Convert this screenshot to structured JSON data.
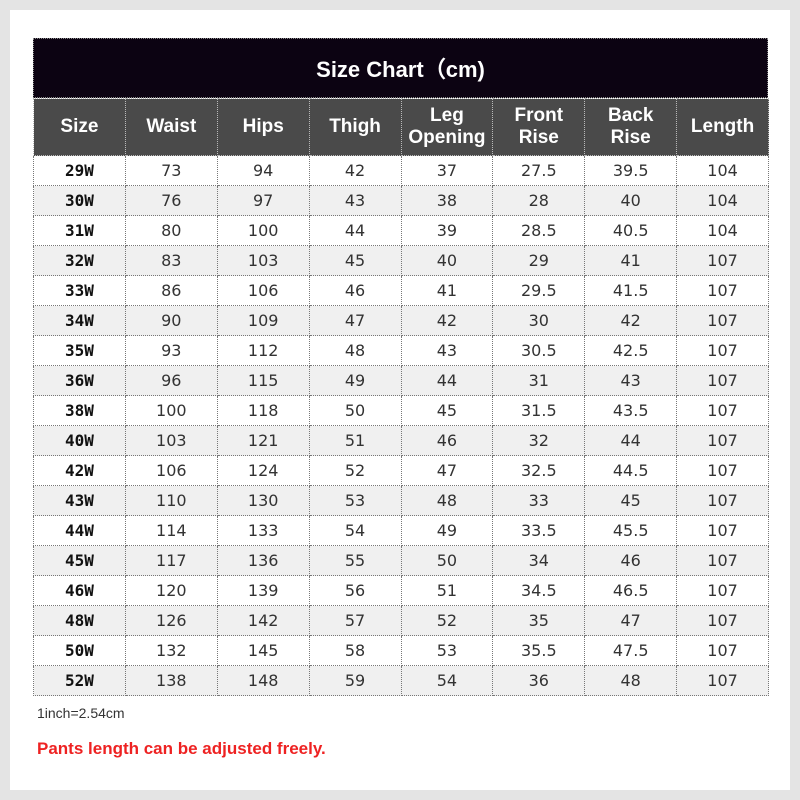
{
  "title": "Size Chart（cm)",
  "headers": [
    "Size",
    "Waist",
    "Hips",
    "Thigh",
    "Leg\nOpening",
    "Front\nRise",
    "Back\nRise",
    "Length"
  ],
  "rows": [
    [
      "29W",
      "73",
      "94",
      "42",
      "37",
      "27.5",
      "39.5",
      "104"
    ],
    [
      "30W",
      "76",
      "97",
      "43",
      "38",
      "28",
      "40",
      "104"
    ],
    [
      "31W",
      "80",
      "100",
      "44",
      "39",
      "28.5",
      "40.5",
      "104"
    ],
    [
      "32W",
      "83",
      "103",
      "45",
      "40",
      "29",
      "41",
      "107"
    ],
    [
      "33W",
      "86",
      "106",
      "46",
      "41",
      "29.5",
      "41.5",
      "107"
    ],
    [
      "34W",
      "90",
      "109",
      "47",
      "42",
      "30",
      "42",
      "107"
    ],
    [
      "35W",
      "93",
      "112",
      "48",
      "43",
      "30.5",
      "42.5",
      "107"
    ],
    [
      "36W",
      "96",
      "115",
      "49",
      "44",
      "31",
      "43",
      "107"
    ],
    [
      "38W",
      "100",
      "118",
      "50",
      "45",
      "31.5",
      "43.5",
      "107"
    ],
    [
      "40W",
      "103",
      "121",
      "51",
      "46",
      "32",
      "44",
      "107"
    ],
    [
      "42W",
      "106",
      "124",
      "52",
      "47",
      "32.5",
      "44.5",
      "107"
    ],
    [
      "43W",
      "110",
      "130",
      "53",
      "48",
      "33",
      "45",
      "107"
    ],
    [
      "44W",
      "114",
      "133",
      "54",
      "49",
      "33.5",
      "45.5",
      "107"
    ],
    [
      "45W",
      "117",
      "136",
      "55",
      "50",
      "34",
      "46",
      "107"
    ],
    [
      "46W",
      "120",
      "139",
      "56",
      "51",
      "34.5",
      "46.5",
      "107"
    ],
    [
      "48W",
      "126",
      "142",
      "57",
      "52",
      "35",
      "47",
      "107"
    ],
    [
      "50W",
      "132",
      "145",
      "58",
      "53",
      "35.5",
      "47.5",
      "107"
    ],
    [
      "52W",
      "138",
      "148",
      "59",
      "54",
      "36",
      "48",
      "107"
    ]
  ],
  "note": "1inch=2.54cm",
  "warning": "Pants length can be adjusted freely.",
  "colors": {
    "title_bg": "#0c0312",
    "header_bg": "#4a4a4a",
    "warning": "#ee2222"
  }
}
